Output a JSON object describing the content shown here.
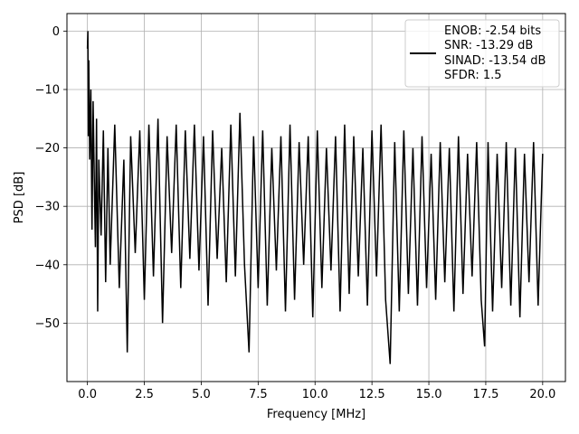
{
  "chart_data": {
    "type": "line",
    "xlabel": "Frequency [MHz]",
    "ylabel": "PSD [dB]",
    "xlim": [
      -0.9,
      21.0
    ],
    "ylim": [
      -60.0,
      3.0
    ],
    "xticks": [
      0.0,
      2.5,
      5.0,
      7.5,
      10.0,
      12.5,
      15.0,
      17.5,
      20.0
    ],
    "xtick_labels": [
      "0.0",
      "2.5",
      "5.0",
      "7.5",
      "10.0",
      "12.5",
      "15.0",
      "17.5",
      "20.0"
    ],
    "yticks": [
      0,
      -10,
      -20,
      -30,
      -40,
      -50
    ],
    "ytick_labels": [
      "0",
      "−10",
      "−20",
      "−30",
      "−40",
      "−50"
    ],
    "grid": true,
    "legend_position": "top-right",
    "series": [
      {
        "color": "#000000",
        "x": [
          0.0,
          0.02,
          0.04,
          0.06,
          0.1,
          0.15,
          0.2,
          0.25,
          0.3,
          0.35,
          0.4,
          0.45,
          0.5,
          0.6,
          0.7,
          0.8,
          0.9,
          1.0,
          1.2,
          1.4,
          1.6,
          1.75,
          1.9,
          2.1,
          2.3,
          2.5,
          2.7,
          2.9,
          3.1,
          3.3,
          3.5,
          3.7,
          3.9,
          4.1,
          4.3,
          4.5,
          4.7,
          4.9,
          5.1,
          5.3,
          5.5,
          5.7,
          5.9,
          6.1,
          6.3,
          6.5,
          6.7,
          6.9,
          7.1,
          7.3,
          7.5,
          7.7,
          7.9,
          8.1,
          8.3,
          8.5,
          8.7,
          8.9,
          9.1,
          9.3,
          9.5,
          9.7,
          9.9,
          10.1,
          10.3,
          10.5,
          10.7,
          10.9,
          11.1,
          11.3,
          11.5,
          11.7,
          11.9,
          12.1,
          12.3,
          12.5,
          12.7,
          12.9,
          13.1,
          13.3,
          13.5,
          13.7,
          13.9,
          14.1,
          14.3,
          14.5,
          14.7,
          14.9,
          15.1,
          15.3,
          15.5,
          15.7,
          15.9,
          16.1,
          16.3,
          16.5,
          16.7,
          16.9,
          17.1,
          17.3,
          17.45,
          17.6,
          17.8,
          18.0,
          18.2,
          18.4,
          18.6,
          18.8,
          19.0,
          19.2,
          19.4,
          19.6,
          19.8,
          20.0
        ],
        "y": [
          -3,
          0,
          -18,
          -5,
          -22,
          -10,
          -34,
          -12,
          -25,
          -37,
          -15,
          -48,
          -22,
          -35,
          -17,
          -43,
          -20,
          -40,
          -16,
          -44,
          -22,
          -55,
          -18,
          -38,
          -17,
          -46,
          -16,
          -42,
          -15,
          -50,
          -18,
          -38,
          -16,
          -44,
          -17,
          -39,
          -16,
          -41,
          -18,
          -47,
          -17,
          -39,
          -20,
          -43,
          -16,
          -42,
          -14,
          -40,
          -55,
          -18,
          -44,
          -17,
          -47,
          -20,
          -41,
          -18,
          -48,
          -16,
          -46,
          -19,
          -40,
          -18,
          -49,
          -17,
          -44,
          -20,
          -41,
          -18,
          -48,
          -16,
          -45,
          -18,
          -42,
          -20,
          -47,
          -17,
          -42,
          -16,
          -46,
          -57,
          -19,
          -48,
          -17,
          -45,
          -20,
          -47,
          -18,
          -44,
          -21,
          -46,
          -19,
          -43,
          -20,
          -48,
          -18,
          -45,
          -21,
          -42,
          -19,
          -46,
          -54,
          -19,
          -48,
          -21,
          -44,
          -19,
          -47,
          -20,
          -49,
          -21,
          -43,
          -19,
          -47,
          -21
        ]
      }
    ],
    "legend": [
      "ENOB: -2.54 bits",
      "SNR: -13.29 dB",
      "SINAD: -13.54 dB",
      "SFDR: 1.5"
    ]
  }
}
